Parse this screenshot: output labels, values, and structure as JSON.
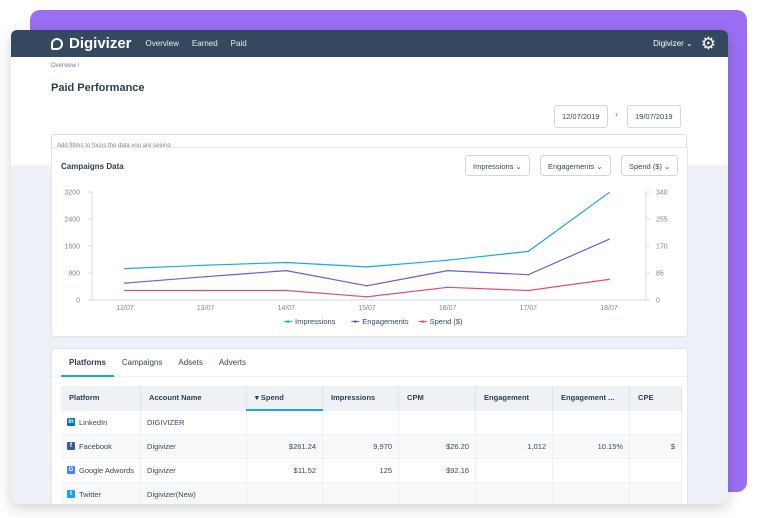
{
  "nav": {
    "brand": "Digivizer",
    "items": [
      "Overview",
      "Earned",
      "Paid"
    ],
    "user": "Digivizer ⌄"
  },
  "header": {
    "breadcrumb": "Overview /",
    "title": "Paid Performance",
    "date_from": "12/07/2019",
    "date_sep": "›",
    "date_to": "19/07/2019",
    "filter_placeholder": "Add filters to focus the data you are seeing"
  },
  "chart_card": {
    "title": "Campaigns Data",
    "dropdowns": [
      "Impressions ⌄",
      "Engagements ⌄",
      "Spend ($) ⌄"
    ]
  },
  "chart_data": {
    "type": "line",
    "x": [
      "12/07",
      "13/07",
      "14/07",
      "15/07",
      "16/07",
      "17/07",
      "18/07"
    ],
    "left_ticks": [
      "3200",
      "2400",
      "1600",
      "800",
      "0"
    ],
    "right_ticks": [
      "340",
      "255",
      "170",
      "85",
      "0"
    ],
    "ylim_left": [
      0,
      3200
    ],
    "ylim_right": [
      0,
      340
    ],
    "series": [
      {
        "name": "Impressions",
        "axis": "left",
        "color": "#1aabd8",
        "values": [
          930,
          1030,
          1110,
          980,
          1180,
          1440,
          3180
        ]
      },
      {
        "name": "Engagements",
        "axis": "left",
        "color": "#7a55d4",
        "values": [
          500,
          690,
          870,
          420,
          870,
          750,
          1800
        ]
      },
      {
        "name": "Spend ($)",
        "axis": "right",
        "color": "#e0506e",
        "values": [
          30,
          30,
          30,
          10,
          40,
          30,
          65
        ]
      }
    ],
    "legend_position": "bottom"
  },
  "table_card": {
    "tabs": [
      "Platforms",
      "Campaigns",
      "Adsets",
      "Adverts"
    ],
    "active_tab": 0,
    "columns": [
      "Platform",
      "Account Name",
      "▾ Spend",
      "Impressions",
      "CPM",
      "Engagement",
      "Engagement ...",
      "CPE"
    ],
    "rows": [
      {
        "platform": "LinkedIn",
        "icon": "linkedin-icon",
        "icon_char": "in",
        "icon_color": "#0077b5",
        "cells": [
          "DIGIVIZER",
          "",
          "",
          "",
          "",
          "",
          ""
        ]
      },
      {
        "platform": "Facebook",
        "icon": "facebook-icon",
        "icon_char": "f",
        "icon_color": "#3b5998",
        "cells": [
          "Digivizer",
          "$261.24",
          "9,970",
          "$26.20",
          "1,012",
          "10.15%",
          "$"
        ]
      },
      {
        "platform": "Google Adwords",
        "icon": "google-icon",
        "icon_char": "G",
        "icon_color": "#4285f4",
        "cells": [
          "Digivizer",
          "$11.52",
          "125",
          "$92.16",
          "",
          "",
          ""
        ]
      },
      {
        "platform": "Twitter",
        "icon": "twitter-icon",
        "icon_char": "t",
        "icon_color": "#1da1f2",
        "cells": [
          "Digivizer(New)",
          "",
          "",
          "",
          "",
          "",
          ""
        ]
      }
    ]
  }
}
